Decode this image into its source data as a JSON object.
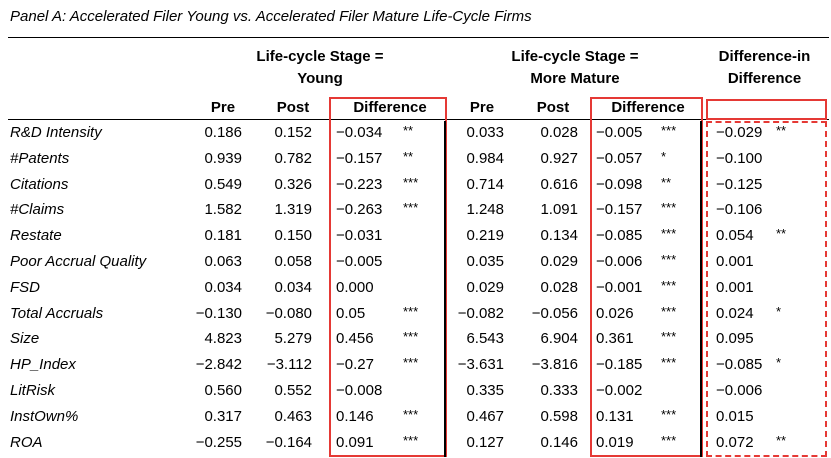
{
  "panel_title": "Panel A: Accelerated Filer Young vs. Accelerated Filer Mature Life-Cycle Firms",
  "headers": {
    "young_line1": "Life-cycle Stage =",
    "young_line2": "Young",
    "mature_line1": "Life-cycle Stage =",
    "mature_line2": "More Mature",
    "did_line1": "Difference-in",
    "did_line2": "Difference",
    "pre": "Pre",
    "post": "Post",
    "difference": "Difference"
  },
  "rows": [
    {
      "label": "R&D Intensity",
      "y_pre": "0.186",
      "y_post": "0.152",
      "y_diff": "−0.034",
      "y_stars": "**",
      "m_pre": "0.033",
      "m_post": "0.028",
      "m_diff": "−0.005",
      "m_stars": "***",
      "did": "−0.029",
      "did_stars": "**"
    },
    {
      "label": "#Patents",
      "y_pre": "0.939",
      "y_post": "0.782",
      "y_diff": "−0.157",
      "y_stars": "**",
      "m_pre": "0.984",
      "m_post": "0.927",
      "m_diff": "−0.057",
      "m_stars": "*",
      "did": "−0.100",
      "did_stars": ""
    },
    {
      "label": "Citations",
      "y_pre": "0.549",
      "y_post": "0.326",
      "y_diff": "−0.223",
      "y_stars": "***",
      "m_pre": "0.714",
      "m_post": "0.616",
      "m_diff": "−0.098",
      "m_stars": "**",
      "did": "−0.125",
      "did_stars": ""
    },
    {
      "label": "#Claims",
      "y_pre": "1.582",
      "y_post": "1.319",
      "y_diff": "−0.263",
      "y_stars": "***",
      "m_pre": "1.248",
      "m_post": "1.091",
      "m_diff": "−0.157",
      "m_stars": "***",
      "did": "−0.106",
      "did_stars": ""
    },
    {
      "label": "Restate",
      "y_pre": "0.181",
      "y_post": "0.150",
      "y_diff": "−0.031",
      "y_stars": "",
      "m_pre": "0.219",
      "m_post": "0.134",
      "m_diff": "−0.085",
      "m_stars": "***",
      "did": "0.054",
      "did_stars": "**"
    },
    {
      "label": "Poor Accrual Quality",
      "y_pre": "0.063",
      "y_post": "0.058",
      "y_diff": "−0.005",
      "y_stars": "",
      "m_pre": "0.035",
      "m_post": "0.029",
      "m_diff": "−0.006",
      "m_stars": "***",
      "did": "0.001",
      "did_stars": ""
    },
    {
      "label": "FSD",
      "y_pre": "0.034",
      "y_post": "0.034",
      "y_diff": "0.000",
      "y_stars": "",
      "m_pre": "0.029",
      "m_post": "0.028",
      "m_diff": "−0.001",
      "m_stars": "***",
      "did": "0.001",
      "did_stars": ""
    },
    {
      "label": "Total Accruals",
      "y_pre": "−0.130",
      "y_post": "−0.080",
      "y_diff": "0.05",
      "y_stars": "***",
      "m_pre": "−0.082",
      "m_post": "−0.056",
      "m_diff": "0.026",
      "m_stars": "***",
      "did": "0.024",
      "did_stars": "*"
    },
    {
      "label": "Size",
      "y_pre": "4.823",
      "y_post": "5.279",
      "y_diff": "0.456",
      "y_stars": "***",
      "m_pre": "6.543",
      "m_post": "6.904",
      "m_diff": "0.361",
      "m_stars": "***",
      "did": "0.095",
      "did_stars": ""
    },
    {
      "label": "HP_Index",
      "y_pre": "−2.842",
      "y_post": "−3.112",
      "y_diff": "−0.27",
      "y_stars": "***",
      "m_pre": "−3.631",
      "m_post": "−3.816",
      "m_diff": "−0.185",
      "m_stars": "***",
      "did": "−0.085",
      "did_stars": "*"
    },
    {
      "label": "LitRisk",
      "y_pre": "0.560",
      "y_post": "0.552",
      "y_diff": "−0.008",
      "y_stars": "",
      "m_pre": "0.335",
      "m_post": "0.333",
      "m_diff": "−0.002",
      "m_stars": "",
      "did": "−0.006",
      "did_stars": ""
    },
    {
      "label": "InstOwn%",
      "y_pre": "0.317",
      "y_post": "0.463",
      "y_diff": "0.146",
      "y_stars": "***",
      "m_pre": "0.467",
      "m_post": "0.598",
      "m_diff": "0.131",
      "m_stars": "***",
      "did": "0.015",
      "did_stars": ""
    },
    {
      "label": "ROA",
      "y_pre": "−0.255",
      "y_post": "−0.164",
      "y_diff": "0.091",
      "y_stars": "***",
      "m_pre": "0.127",
      "m_post": "0.146",
      "m_diff": "0.019",
      "m_stars": "***",
      "did": "0.072",
      "did_stars": "**"
    }
  ]
}
